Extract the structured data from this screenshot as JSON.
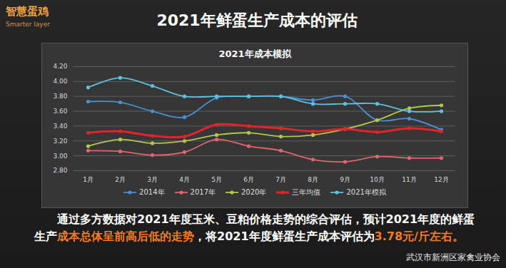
{
  "slide": {
    "title": "2021年鲜蛋生产成本的评估",
    "logo": "智慧蛋鸡",
    "logo_sub": "Smarter layer",
    "caption": [
      {
        "text": "通过多方数据对2021年度玉米、豆粕价格走势的综合评估，预计2021年度的鲜蛋生产",
        "color": "#ffffff"
      },
      {
        "text": "成本总体呈前高后低的走势",
        "color": "#f07a2a"
      },
      {
        "text": "，将2021年度鲜蛋生产成本评估为",
        "color": "#ffffff"
      },
      {
        "text": "3.78元/斤",
        "color": "#f07a2a"
      },
      {
        "text": "左右。",
        "color": "#f07a2a"
      }
    ],
    "watermark": "武汉市新洲区家禽业协会"
  },
  "chart_data": {
    "type": "line",
    "title": "2021年成本模拟",
    "categories": [
      "1月",
      "2月",
      "3月",
      "4月",
      "5月",
      "6月",
      "7月",
      "8月",
      "9月",
      "10月",
      "11月",
      "12月"
    ],
    "series": [
      {
        "name": "2014年",
        "color": "#4a8fd4",
        "marker": "circle",
        "line_style": "solid",
        "values": [
          3.73,
          3.72,
          3.6,
          3.52,
          3.78,
          3.8,
          3.8,
          3.75,
          3.8,
          3.48,
          3.5,
          3.35
        ]
      },
      {
        "name": "2017年",
        "color": "#e0656c",
        "marker": "circle",
        "line_style": "solid",
        "values": [
          3.07,
          3.06,
          3.01,
          3.05,
          3.22,
          3.13,
          3.07,
          2.95,
          2.92,
          2.99,
          2.97,
          2.97
        ]
      },
      {
        "name": "2020年",
        "color": "#b4c74a",
        "marker": "circle",
        "line_style": "solid",
        "values": [
          3.13,
          3.22,
          3.17,
          3.2,
          3.28,
          3.31,
          3.26,
          3.28,
          3.36,
          3.48,
          3.64,
          3.68
        ]
      },
      {
        "name": "三年均值",
        "color": "#e8202a",
        "marker": "circle",
        "line_style": "thick",
        "values": [
          3.31,
          3.33,
          3.27,
          3.26,
          3.42,
          3.4,
          3.37,
          3.33,
          3.36,
          3.32,
          3.37,
          3.33
        ]
      },
      {
        "name": "2021年模拟",
        "color": "#5bc2e0",
        "marker": "circle",
        "line_style": "solid",
        "values": [
          3.92,
          4.05,
          3.94,
          3.8,
          3.8,
          3.8,
          3.8,
          3.7,
          3.7,
          3.7,
          3.6,
          3.6
        ]
      }
    ],
    "ylim": [
      2.8,
      4.2
    ],
    "yticks": [
      {
        "value": 2.8,
        "label": "2.80"
      },
      {
        "value": 3.0,
        "label": "3.00"
      },
      {
        "value": 3.2,
        "label": "3.20"
      },
      {
        "value": 3.4,
        "label": "3.40"
      },
      {
        "value": 3.6,
        "label": "3.60"
      },
      {
        "value": 3.8,
        "label": "3.80"
      },
      {
        "value": 4.0,
        "label": "4.00"
      },
      {
        "value": 4.2,
        "label": "4.20"
      }
    ],
    "grid": true,
    "legend": "bottom"
  }
}
